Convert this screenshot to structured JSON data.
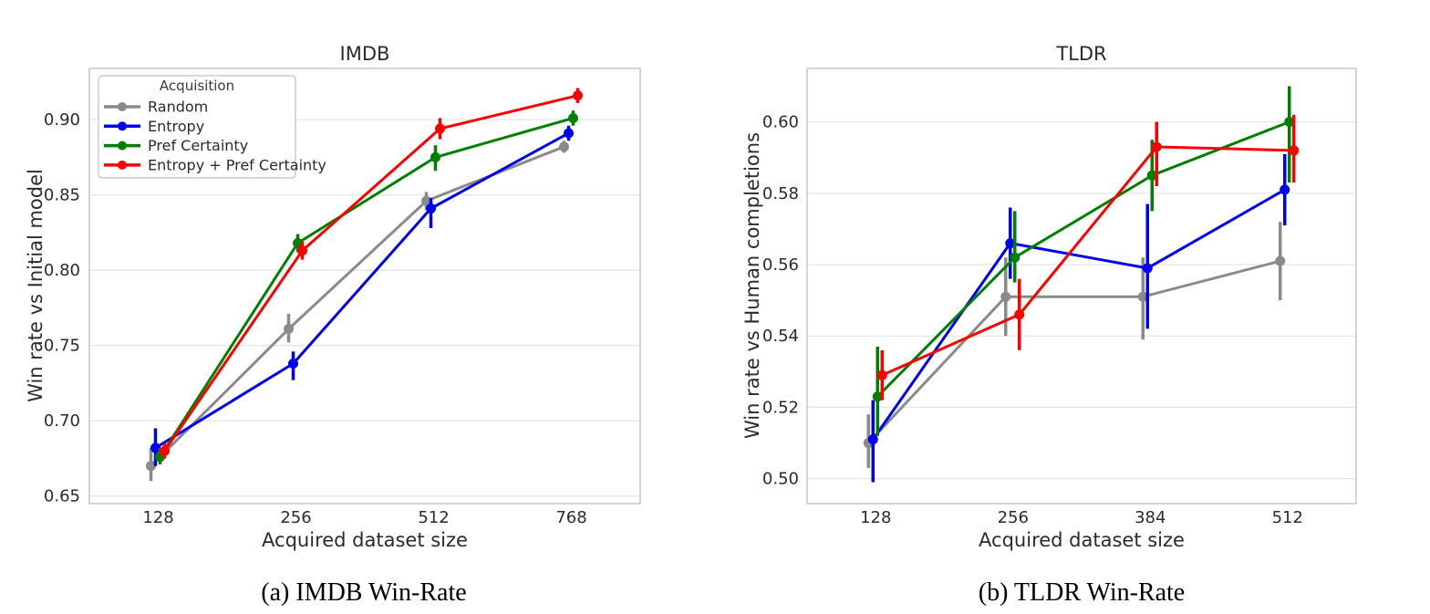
{
  "figure": {
    "captions": [
      "(a) IMDB Win-Rate",
      "(b) TLDR Win-Rate"
    ]
  },
  "colors": {
    "random": "#8a8a8a",
    "entropy": "#0000f0",
    "pref_certainty": "#008000",
    "entropy_pref_certainty": "#fe0000",
    "grid": "#e6e6e6",
    "axes_border": "#c9c9c9",
    "text": "#2b2b2b"
  },
  "chart_data": [
    {
      "type": "line",
      "title": "IMDB",
      "xlabel": "Acquired dataset size",
      "ylabel": "Win rate vs Initial model",
      "categories": [
        "128",
        "256",
        "512",
        "768"
      ],
      "ytick_values": [
        0.65,
        0.7,
        0.75,
        0.8,
        0.85,
        0.9
      ],
      "ytick_labels": [
        "0.65",
        "0.70",
        "0.75",
        "0.80",
        "0.85",
        "0.90"
      ],
      "ylim": [
        0.645,
        0.934
      ],
      "grid": "horizontal",
      "legend": {
        "visible": true,
        "title": "Acquisition",
        "position": "upper left"
      },
      "series": [
        {
          "name": "Random",
          "color": "#8a8a8a",
          "values": [
            0.67,
            0.761,
            0.846,
            0.882
          ],
          "err_lo": [
            0.66,
            0.752,
            0.84,
            0.878
          ],
          "err_hi": [
            0.682,
            0.771,
            0.852,
            0.886
          ]
        },
        {
          "name": "Entropy",
          "color": "#0000f0",
          "values": [
            0.682,
            0.738,
            0.841,
            0.891
          ],
          "err_lo": [
            0.67,
            0.727,
            0.828,
            0.886
          ],
          "err_hi": [
            0.695,
            0.746,
            0.848,
            0.896
          ]
        },
        {
          "name": "Pref Certainty",
          "color": "#008000",
          "values": [
            0.676,
            0.818,
            0.875,
            0.901
          ],
          "err_lo": [
            0.671,
            0.812,
            0.866,
            0.896
          ],
          "err_hi": [
            0.682,
            0.824,
            0.883,
            0.906
          ]
        },
        {
          "name": "Entropy + Pref Certainty",
          "color": "#fe0000",
          "values": [
            0.68,
            0.813,
            0.894,
            0.916
          ],
          "err_lo": [
            0.675,
            0.807,
            0.887,
            0.911
          ],
          "err_hi": [
            0.685,
            0.819,
            0.901,
            0.921
          ]
        }
      ]
    },
    {
      "type": "line",
      "title": "TLDR",
      "xlabel": "Acquired dataset size",
      "ylabel": "Win rate vs Human completions",
      "categories": [
        "128",
        "256",
        "384",
        "512"
      ],
      "ytick_values": [
        0.5,
        0.52,
        0.54,
        0.56,
        0.58,
        0.6
      ],
      "ytick_labels": [
        "0.50",
        "0.52",
        "0.54",
        "0.56",
        "0.58",
        "0.60"
      ],
      "ylim": [
        0.493,
        0.615
      ],
      "grid": "horizontal",
      "legend": {
        "visible": false
      },
      "series": [
        {
          "name": "Random",
          "color": "#8a8a8a",
          "values": [
            0.51,
            0.551,
            0.551,
            0.561
          ],
          "err_lo": [
            0.503,
            0.54,
            0.539,
            0.55
          ],
          "err_hi": [
            0.518,
            0.562,
            0.562,
            0.572
          ]
        },
        {
          "name": "Entropy",
          "color": "#0000f0",
          "values": [
            0.511,
            0.566,
            0.559,
            0.581
          ],
          "err_lo": [
            0.499,
            0.556,
            0.542,
            0.571
          ],
          "err_hi": [
            0.522,
            0.576,
            0.577,
            0.591
          ]
        },
        {
          "name": "Pref Certainty",
          "color": "#008000",
          "values": [
            0.523,
            0.562,
            0.585,
            0.6
          ],
          "err_lo": [
            0.512,
            0.555,
            0.575,
            0.583
          ],
          "err_hi": [
            0.537,
            0.575,
            0.595,
            0.61
          ]
        },
        {
          "name": "Entropy + Pref Certainty",
          "color": "#fe0000",
          "values": [
            0.529,
            0.546,
            0.593,
            0.592
          ],
          "err_lo": [
            0.522,
            0.536,
            0.582,
            0.583
          ],
          "err_hi": [
            0.536,
            0.556,
            0.6,
            0.602
          ]
        }
      ]
    }
  ]
}
